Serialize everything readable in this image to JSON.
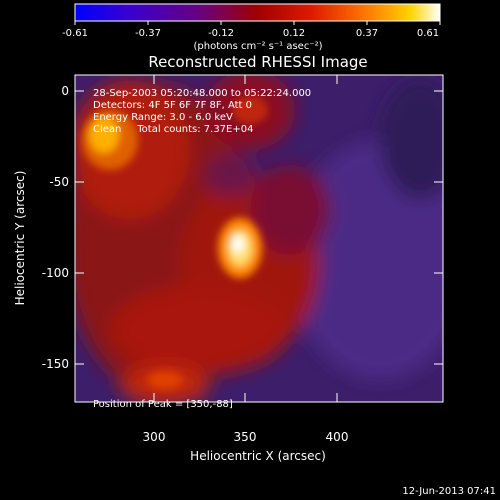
{
  "colorbar": {
    "ticks": [
      "-0.61",
      "-0.37",
      "-0.12",
      "0.12",
      "0.37",
      "0.61"
    ],
    "unit_label": "(photons cm⁻² s⁻¹ asec⁻²)",
    "colors": [
      "#0000ff",
      "#3a00d0",
      "#6a007a",
      "#a00000",
      "#e01a00",
      "#ff7a00",
      "#ffd400",
      "#ffffff"
    ]
  },
  "title": "Reconstructed RHESSI Image",
  "info_lines": [
    "28-Sep-2003 05:20:48.000 to 05:22:24.000",
    "Detectors: 4F 5F 6F 7F 8F, Att 0",
    "Energy Range: 3.0 - 6.0 keV",
    "Clean     Total counts: 7.37E+04"
  ],
  "peak_label": "Position of Peak = [350,-88]",
  "x_axis": {
    "label": "Heliocentric X (arcsec)",
    "ticks": [
      "300",
      "350",
      "400"
    ]
  },
  "y_axis": {
    "label": "Heliocentric Y (arcsec)",
    "ticks": [
      "0",
      "-50",
      "-100",
      "-150"
    ]
  },
  "timestamp": "12-Jun-2013 07:41"
}
